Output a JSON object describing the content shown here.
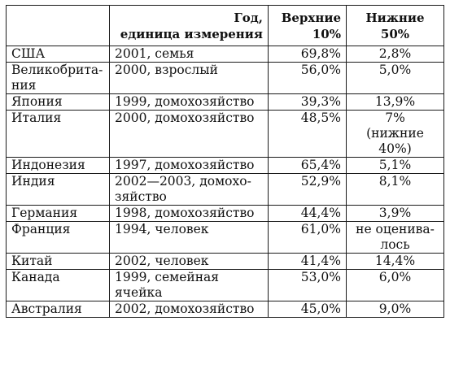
{
  "table": {
    "headers": {
      "country": "",
      "year_unit": "Год,\nединица измерения",
      "top10": "Верхние\n10%",
      "bottom50": "Нижние 50%"
    },
    "rows": [
      {
        "country": "США",
        "year_unit": "2001, семья",
        "top10": "69,8%",
        "bottom50": "2,8%"
      },
      {
        "country": "Великобрита-\nния",
        "year_unit": "2000, взрослый",
        "top10": "56,0%",
        "bottom50": "5,0%"
      },
      {
        "country": "Япония",
        "year_unit": "1999, домохозяйство",
        "top10": "39,3%",
        "bottom50": "13,9%"
      },
      {
        "country": "Италия",
        "year_unit": "2000, домохозяйство",
        "top10": "48,5%",
        "bottom50": "7%\n(нижние\n40%)"
      },
      {
        "country": "Индонезия",
        "year_unit": "1997, домохозяйство",
        "top10": "65,4%",
        "bottom50": "5,1%"
      },
      {
        "country": "Индия",
        "year_unit": "2002—2003, домохо-\nзяйство",
        "top10": "52,9%",
        "bottom50": "8,1%"
      },
      {
        "country": "Германия",
        "year_unit": "1998, домохозяйство",
        "top10": "44,4%",
        "bottom50": "3,9%"
      },
      {
        "country": "Франция",
        "year_unit": "1994, человек",
        "top10": "61,0%",
        "bottom50": "не оценива-\nлось"
      },
      {
        "country": "Китай",
        "year_unit": "2002, человек",
        "top10": "41,4%",
        "bottom50": "14,4%"
      },
      {
        "country": "Канада",
        "year_unit": "1999, семейная\nячейка",
        "top10": "53,0%",
        "bottom50": "6,0%"
      },
      {
        "country": "Австралия",
        "year_unit": "2002, домохозяйство",
        "top10": "45,0%",
        "bottom50": "9,0%"
      }
    ]
  }
}
